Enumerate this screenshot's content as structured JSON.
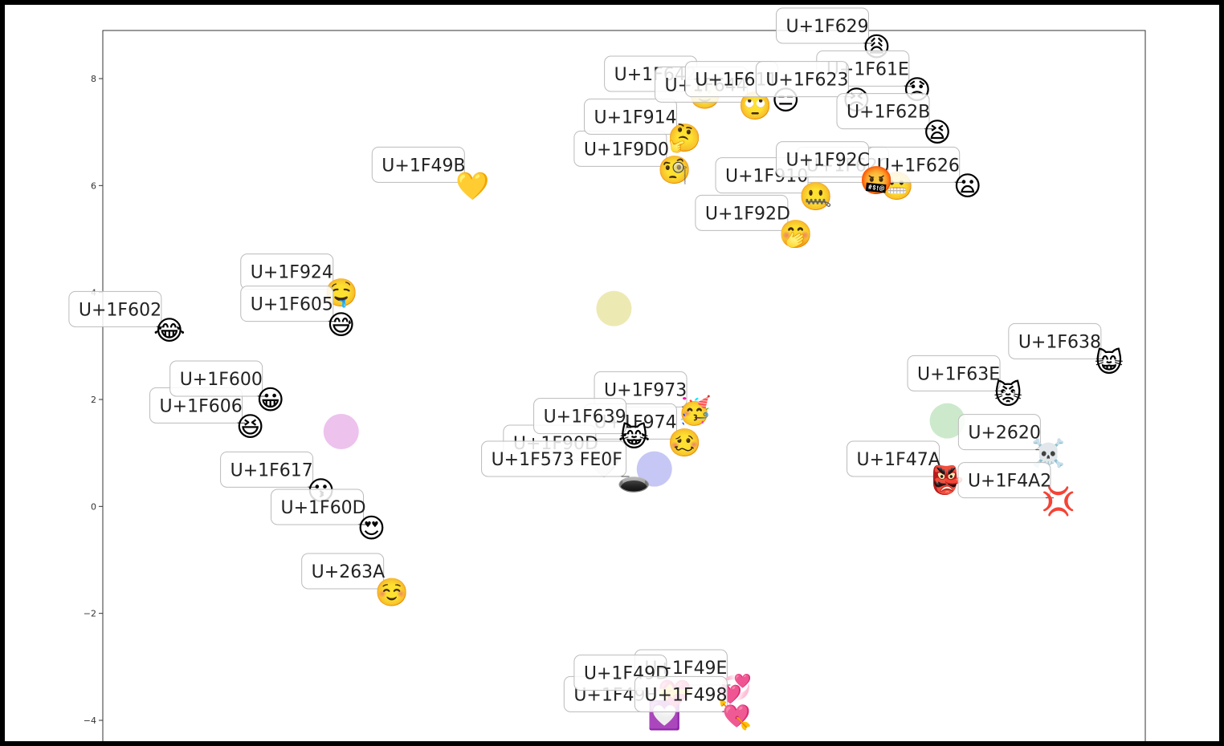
{
  "chart_data": {
    "type": "scatter",
    "title": "",
    "xlabel": "",
    "ylabel": "",
    "ylim": [
      -4.6,
      8.9
    ],
    "yticks": [
      8,
      6,
      4,
      2,
      0,
      -2,
      -4
    ],
    "ytick_labels": [
      "8",
      "6",
      "4",
      "2",
      "0",
      "−2",
      "−4"
    ],
    "grid": false,
    "xlim": [
      0,
      1
    ],
    "points": [
      {
        "label": "U+1F602",
        "glyph": "😂",
        "x": 0.05,
        "y": 3.3
      },
      {
        "label": "U+1F924",
        "glyph": "🤤",
        "x": 0.22,
        "y": 4.0
      },
      {
        "label": "U+1F605",
        "glyph": "😅",
        "x": 0.22,
        "y": 3.4
      },
      {
        "label": "U+1F606",
        "glyph": "😆",
        "x": 0.13,
        "y": 1.5
      },
      {
        "label": "U+1F600",
        "glyph": "😀",
        "x": 0.15,
        "y": 2.0
      },
      {
        "label": "U+1F617",
        "glyph": "😗",
        "x": 0.2,
        "y": 0.3
      },
      {
        "label": "U+1F60D",
        "glyph": "😍",
        "x": 0.25,
        "y": -0.4
      },
      {
        "label": "U+263A",
        "glyph": "☺️",
        "x": 0.27,
        "y": -1.6
      },
      {
        "label": "U+1F49B",
        "glyph": "💛",
        "x": 0.35,
        "y": 6.0
      },
      {
        "label": "U+1F9D0",
        "glyph": "🧐",
        "x": 0.55,
        "y": 6.3
      },
      {
        "label": "U+1F914",
        "glyph": "🤔",
        "x": 0.56,
        "y": 6.9
      },
      {
        "label": "U+1F642",
        "glyph": "🙂",
        "x": 0.58,
        "y": 7.7
      },
      {
        "label": "U+1F644",
        "glyph": "🙄",
        "x": 0.63,
        "y": 7.5
      },
      {
        "label": "U+1F611",
        "glyph": "😑",
        "x": 0.66,
        "y": 7.6
      },
      {
        "label": "U+1F629",
        "glyph": "😩",
        "x": 0.75,
        "y": 8.6
      },
      {
        "label": "U+1F61E",
        "glyph": "😞",
        "x": 0.79,
        "y": 7.8
      },
      {
        "label": "U+1F623",
        "glyph": "😣",
        "x": 0.73,
        "y": 7.6
      },
      {
        "label": "U+1F62C",
        "glyph": "😬",
        "x": 0.77,
        "y": 6.0
      },
      {
        "label": "U+1F910",
        "glyph": "🤐",
        "x": 0.69,
        "y": 5.8
      },
      {
        "label": "U+1F92D",
        "glyph": "🤭",
        "x": 0.67,
        "y": 5.1
      },
      {
        "label": "U+1F626",
        "glyph": "😦",
        "x": 0.84,
        "y": 6.0
      },
      {
        "label": "U+1F92C",
        "glyph": "🤬",
        "x": 0.75,
        "y": 6.1
      },
      {
        "label": "U+1F62B",
        "glyph": "😫",
        "x": 0.81,
        "y": 7.0
      },
      {
        "label": "U+1F973",
        "glyph": "🥳",
        "x": 0.57,
        "y": 1.8
      },
      {
        "label": "U+1F974",
        "glyph": "🥴",
        "x": 0.56,
        "y": 1.2
      },
      {
        "label": "U+1F90D",
        "glyph": "🤍",
        "x": 0.48,
        "y": 0.8
      },
      {
        "label": "U+1F573 FE0F",
        "glyph": "🕳️",
        "x": 0.51,
        "y": 0.5
      },
      {
        "label": "U+1F639",
        "glyph": "😹",
        "x": 0.51,
        "y": 1.3
      },
      {
        "label": "U+1F638",
        "glyph": "😸",
        "x": 0.98,
        "y": 2.7
      },
      {
        "label": "U+1F63E",
        "glyph": "😾",
        "x": 0.88,
        "y": 2.1
      },
      {
        "label": "U+1F47A",
        "glyph": "👺",
        "x": 0.82,
        "y": 0.5
      },
      {
        "label": "U+2620",
        "glyph": "☠️",
        "x": 0.92,
        "y": 1.0
      },
      {
        "label": "U+1F4A2",
        "glyph": "💢",
        "x": 0.93,
        "y": 0.1
      },
      {
        "label": "U+1F49F",
        "glyph": "💟",
        "x": 0.54,
        "y": -3.9
      },
      {
        "label": "U+1F49E",
        "glyph": "💞",
        "x": 0.61,
        "y": -3.4
      },
      {
        "label": "U+1F49D",
        "glyph": "💝",
        "x": 0.55,
        "y": -3.5
      },
      {
        "label": "U+1F498",
        "glyph": "💘",
        "x": 0.61,
        "y": -3.9
      }
    ],
    "cluster_blobs": [
      {
        "x": 0.49,
        "y": 3.7,
        "color": "#e8e3a0"
      },
      {
        "x": 0.22,
        "y": 1.4,
        "color": "#e9b3e9"
      },
      {
        "x": 0.53,
        "y": 0.7,
        "color": "#b9b9f3"
      },
      {
        "x": 0.82,
        "y": 1.6,
        "color": "#bfe3bf"
      }
    ]
  }
}
